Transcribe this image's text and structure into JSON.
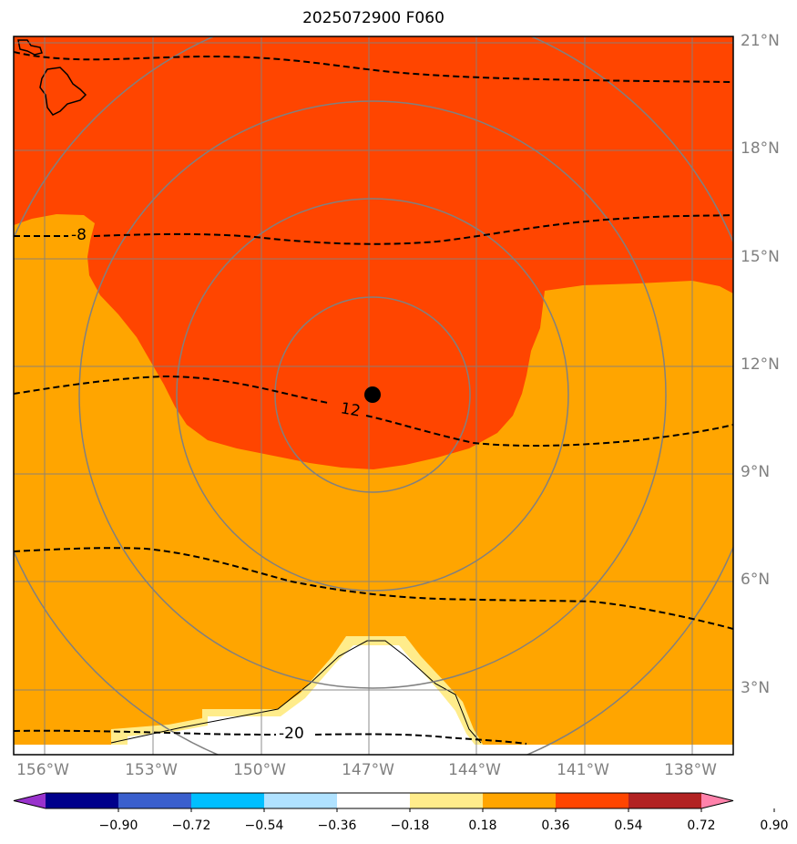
{
  "title": "2025072900 F060",
  "colors": {
    "background_field": "#FFA500",
    "high_field": "#FF4500",
    "low_field": "#FFFFFF",
    "edge_band": "#FFEC8B",
    "grid": "#808080",
    "contour": "#000000"
  },
  "latitude_labels": [
    "21°N",
    "18°N",
    "15°N",
    "12°N",
    "9°N",
    "6°N",
    "3°N"
  ],
  "longitude_labels": [
    "156°W",
    "153°W",
    "150°W",
    "147°W",
    "144°W",
    "141°W",
    "138°W"
  ],
  "contour_labels": [
    "-8",
    "12",
    "-20"
  ],
  "storm_center": {
    "lat": 11.1,
    "lon": "146.9°W"
  },
  "range_rings": 4,
  "colorbar": {
    "colors": [
      "#9932CC",
      "#00008B",
      "#3A5FCD",
      "#00BFFF",
      "#B0E2FF",
      "#FFFFFF",
      "#FFEC8B",
      "#FFA500",
      "#FF4500",
      "#B22222",
      "#FF82AB"
    ],
    "ticks": [
      "−0.90",
      "−0.72",
      "−0.54",
      "−0.36",
      "−0.18",
      "0.18",
      "0.36",
      "0.54",
      "0.72",
      "0.90"
    ],
    "extend": "both"
  }
}
